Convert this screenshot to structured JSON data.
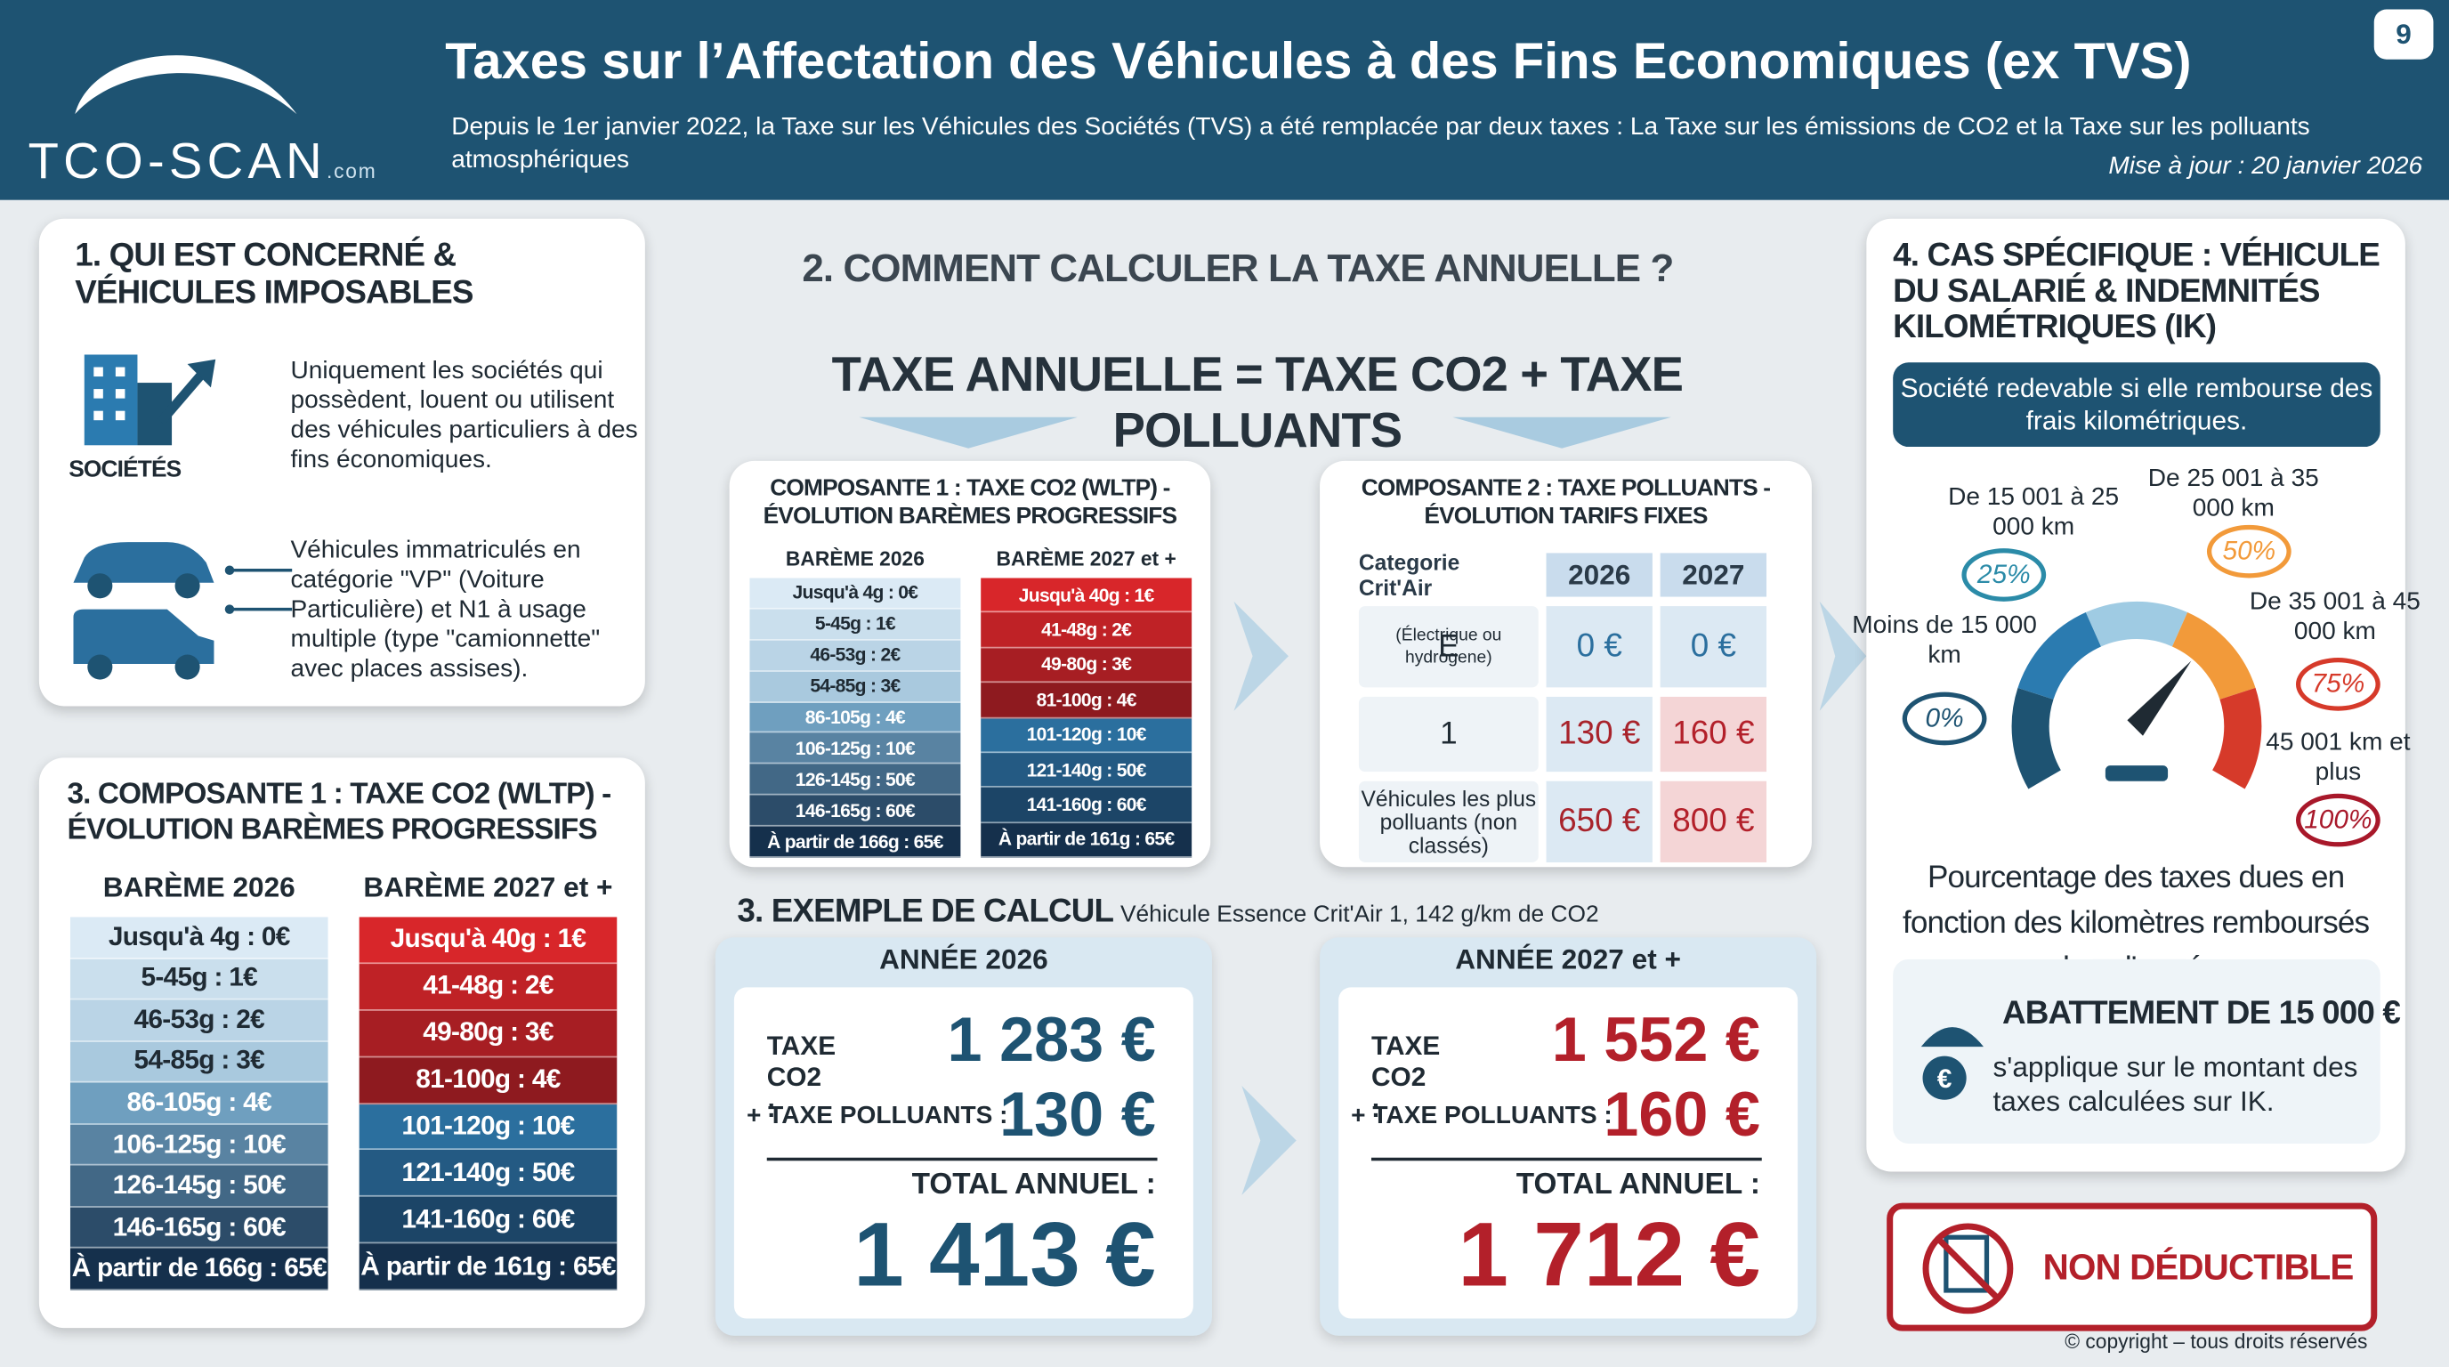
{
  "header": {
    "logo": "TCO-SCAN",
    "logo_suffix": ".com",
    "title": "Taxes sur l’Affectation des Véhicules à des Fins Economiques (ex TVS)",
    "subtitle": "Depuis le 1er janvier 2022, la Taxe sur les Véhicules des Sociétés (TVS) a été remplacée par deux taxes : La Taxe sur les émissions de CO2 et la Taxe sur les polluants atmosphériques",
    "update": "Mise à jour : 20 janvier 2026",
    "page": "9"
  },
  "section1": {
    "title": "1. QUI EST CONCERNÉ & VÉHICULES IMPOSABLES",
    "icon_label": "SOCIÉTÉS",
    "items": [
      "Uniquement les sociétés qui possèdent, louent ou utilisent des véhicules particuliers à des fins économiques.",
      "Véhicules immatriculés en catégorie \"VP\" (Voiture Particulière) et N1 à usage multiple (type \"camionnette\" avec places assises)."
    ]
  },
  "baremes": {
    "headers": [
      "BARÈME 2026",
      "BARÈME 2027 et +"
    ],
    "rows_2026": [
      "Jusqu'à 4g : 0€",
      "5-45g : 1€",
      "46-53g : 2€",
      "54-85g : 3€",
      "86-105g : 4€",
      "106-125g : 10€",
      "126-145g : 50€",
      "146-165g : 60€",
      "À partir de 166g : 65€"
    ],
    "rows_2027": [
      "Jusqu'à 40g : 1€",
      "41-48g : 2€",
      "49-80g : 3€",
      "81-100g : 4€",
      "101-120g : 10€",
      "121-140g : 50€",
      "141-160g : 60€",
      "À partir de 161g : 65€"
    ]
  },
  "section3_left": {
    "title": "3. COMPOSANTE 1 : TAXE CO2 (WLTP) - ÉVOLUTION BARÈMES PROGRESSIFS"
  },
  "section2": {
    "title": "2. COMMENT CALCULER LA TAXE ANNUELLE ?",
    "formula": "TAXE ANNUELLE = TAXE CO2 + TAXE POLLUANTS",
    "co2_card_title": "COMPOSANTE 1 : TAXE CO2 (WLTP) - ÉVOLUTION BARÈMES PROGRESSIFS"
  },
  "pollutants": {
    "title": "COMPOSANTE 2 : TAXE POLLUANTS - ÉVOLUTION TARIFS FIXES",
    "headers": [
      "Categorie Crit'Air",
      "2026",
      "2027"
    ],
    "rows": [
      {
        "label": "E",
        "note": "(Électrique ou hydrogene)",
        "v2026": "0 €",
        "v2027": "0 €"
      },
      {
        "label": "1",
        "v2026": "130 €",
        "v2027": "160 €"
      },
      {
        "label": "Véhicules les plus polluants (non classés)",
        "v2026": "650 €",
        "v2027": "800 €"
      }
    ]
  },
  "example": {
    "title": "3. EXEMPLE DE CALCUL",
    "subtitle": "Véhicule Essence Crit'Air 1, 142 g/km de CO2",
    "columns": [
      {
        "year": "ANNÉE 2026",
        "co2_label": "TAXE CO2 :",
        "co2": "1 283 €",
        "pol_label": "+ TAXE POLLUANTS :",
        "pol": "130 €",
        "total_label": "TOTAL ANNUEL :",
        "total": "1 413 €"
      },
      {
        "year": "ANNÉE 2027 et +",
        "co2_label": "TAXE CO2 :",
        "co2": "1 552 €",
        "pol_label": "+ TAXE POLLUANTS :",
        "pol": "160 €",
        "total_label": "TOTAL ANNUEL :",
        "total": "1 712 €"
      }
    ]
  },
  "section4": {
    "title": "4. CAS SPÉCIFIQUE : VÉHICULE DU SALARIÉ & INDEMNITÉS KILOMÉTRIQUES (IK)",
    "banner": "Société redevable si elle rembourse des frais kilométriques.",
    "brackets": [
      {
        "range": "Moins de 15 000 km",
        "pct": "0%"
      },
      {
        "range": "De 15 001 à 25 000 km",
        "pct": "25%"
      },
      {
        "range": "De 25 001 à 35 000 km",
        "pct": "50%"
      },
      {
        "range": "De 35 001 à 45 000 km",
        "pct": "75%"
      },
      {
        "range": "45 001 km et plus",
        "pct": "100%"
      }
    ],
    "caption": "Pourcentage des taxes dues en fonction des kilomètres remboursés dans l'année",
    "abatement_title": "ABATTEMENT DE 15 000 €",
    "abatement_text": "s'applique sur le montant des taxes calculées sur IK."
  },
  "non_deductible": "NON DÉDUCTIBLE",
  "footer": "© copyright – tous droits réservés"
}
